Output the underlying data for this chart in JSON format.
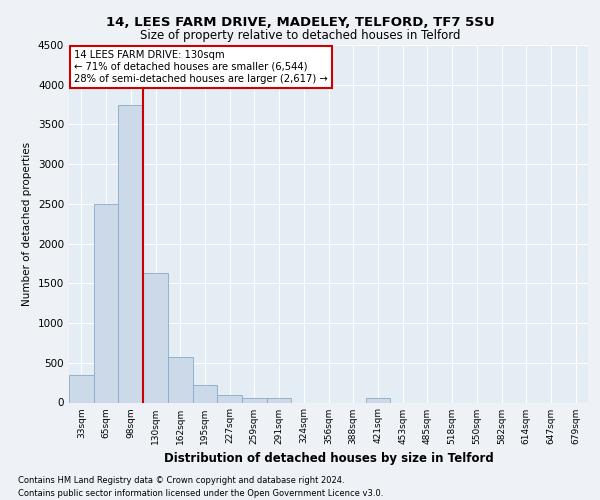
{
  "title1": "14, LEES FARM DRIVE, MADELEY, TELFORD, TF7 5SU",
  "title2": "Size of property relative to detached houses in Telford",
  "xlabel": "Distribution of detached houses by size in Telford",
  "ylabel": "Number of detached properties",
  "bar_labels": [
    "33sqm",
    "65sqm",
    "98sqm",
    "130sqm",
    "162sqm",
    "195sqm",
    "227sqm",
    "259sqm",
    "291sqm",
    "324sqm",
    "356sqm",
    "388sqm",
    "421sqm",
    "453sqm",
    "485sqm",
    "518sqm",
    "550sqm",
    "582sqm",
    "614sqm",
    "647sqm",
    "679sqm"
  ],
  "bar_values": [
    350,
    2500,
    3750,
    1625,
    575,
    225,
    100,
    60,
    60,
    0,
    0,
    0,
    60,
    0,
    0,
    0,
    0,
    0,
    0,
    0,
    0
  ],
  "highlight_index": 3,
  "bar_color": "#ccd9e8",
  "bar_edge_color": "#8aaac8",
  "highlight_line_color": "#cc0000",
  "annotation_line1": "14 LEES FARM DRIVE: 130sqm",
  "annotation_line2": "← 71% of detached houses are smaller (6,544)",
  "annotation_line3": "28% of semi-detached houses are larger (2,617) →",
  "annotation_box_facecolor": "#ffffff",
  "annotation_box_edgecolor": "#cc0000",
  "ylim": [
    0,
    4500
  ],
  "yticks": [
    0,
    500,
    1000,
    1500,
    2000,
    2500,
    3000,
    3500,
    4000,
    4500
  ],
  "footer1": "Contains HM Land Registry data © Crown copyright and database right 2024.",
  "footer2": "Contains public sector information licensed under the Open Government Licence v3.0.",
  "fig_bg_color": "#eef2f7",
  "plot_bg_color": "#e4ecf4"
}
